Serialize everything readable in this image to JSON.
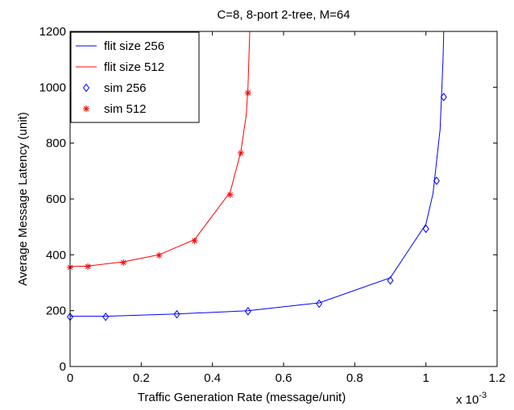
{
  "chart_data": {
    "type": "line",
    "title": "C=8, 8-port 2-tree, M=64",
    "xlabel": "Traffic Generation Rate (message/unit)",
    "ylabel": "Average Message Latency (unit)",
    "x_multiplier_label": "x 10",
    "x_multiplier_exponent": "-3",
    "xlim": [
      0,
      1.2
    ],
    "ylim": [
      0,
      1200
    ],
    "xticks": [
      "0",
      "0.2",
      "0.4",
      "0.6",
      "0.8",
      "1",
      "1.2"
    ],
    "yticks": [
      "0",
      "200",
      "400",
      "600",
      "800",
      "1000",
      "1200"
    ],
    "xtick_values": [
      0,
      0.2,
      0.4,
      0.6,
      0.8,
      1.0,
      1.2
    ],
    "ytick_values": [
      0,
      200,
      400,
      600,
      800,
      1000,
      1200
    ],
    "grid": false,
    "legend_position": "top-left",
    "series": [
      {
        "name": "flit size 256",
        "kind": "line",
        "color": "#0000ff",
        "x": [
          0,
          0.1,
          0.3,
          0.5,
          0.7,
          0.9,
          1.0,
          1.02,
          1.04,
          1.045,
          1.048,
          1.05
        ],
        "y": [
          180,
          180,
          188,
          200,
          228,
          318,
          510,
          620,
          850,
          1000,
          1100,
          1200
        ]
      },
      {
        "name": "flit size 512",
        "kind": "line",
        "color": "#ff0000",
        "x": [
          0,
          0.05,
          0.15,
          0.25,
          0.35,
          0.45,
          0.48,
          0.495,
          0.5,
          0.505
        ],
        "y": [
          358,
          360,
          375,
          400,
          455,
          625,
          770,
          900,
          1000,
          1200
        ]
      },
      {
        "name": "sim 256",
        "kind": "marker",
        "marker": "diamond",
        "color": "#0000ff",
        "x": [
          0,
          0.1,
          0.3,
          0.5,
          0.7,
          0.9,
          1.0,
          1.03,
          1.05
        ],
        "y": [
          178,
          178,
          187,
          198,
          225,
          308,
          493,
          665,
          965
        ]
      },
      {
        "name": "sim 512",
        "kind": "marker",
        "marker": "star",
        "color": "#ff0000",
        "x": [
          0,
          0.05,
          0.15,
          0.25,
          0.35,
          0.45,
          0.48,
          0.5
        ],
        "y": [
          355,
          358,
          372,
          398,
          450,
          615,
          765,
          980
        ]
      }
    ]
  }
}
